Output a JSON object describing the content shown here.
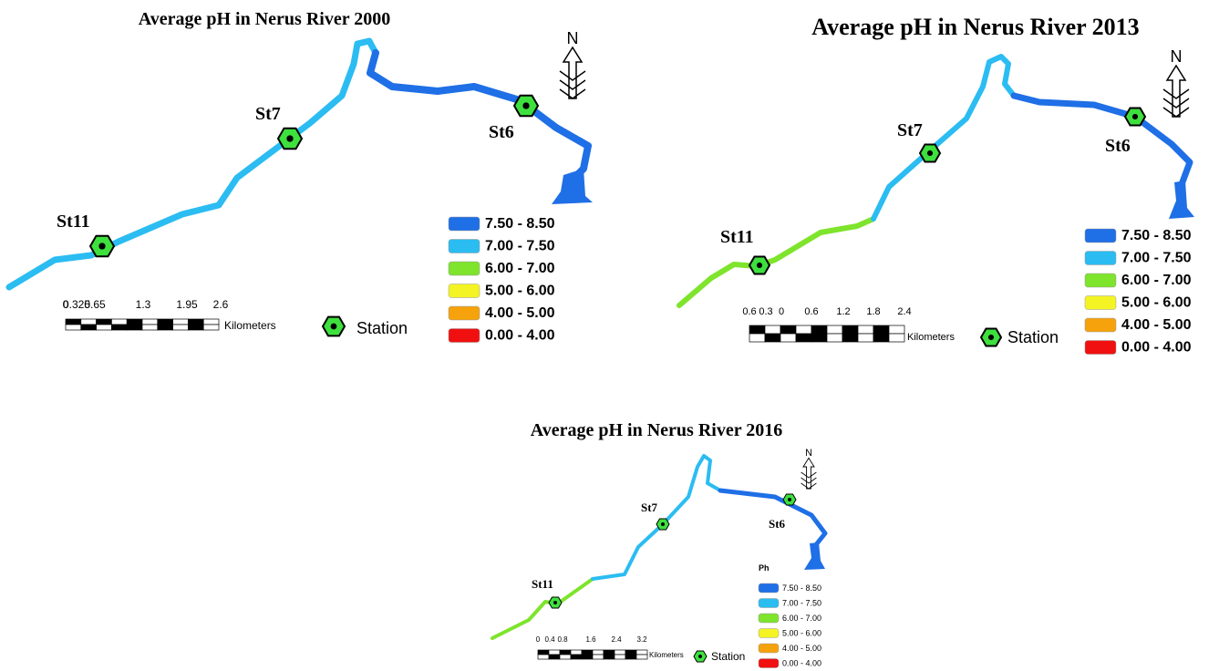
{
  "maps": [
    {
      "title": "Average pH in Nerus River 2000",
      "stations": [
        "St11",
        "St7",
        "St6"
      ],
      "legend": {
        "items": [
          {
            "label": "7.50 - 8.50",
            "color": "#1f6fe6"
          },
          {
            "label": "7.00 - 7.50",
            "color": "#2bbcf2"
          },
          {
            "label": "6.00 - 7.00",
            "color": "#7ee42c"
          },
          {
            "label": "5.00 - 6.00",
            "color": "#f4f425"
          },
          {
            "label": "4.00 - 5.00",
            "color": "#f5a20c"
          },
          {
            "label": "0.00 - 4.00",
            "color": "#f01010"
          }
        ]
      },
      "scale": {
        "labels": [
          "0",
          "0.325",
          "0.65",
          "1.3",
          "1.95",
          "2.6"
        ],
        "unit": "Kilometers"
      },
      "station_legend": "Station",
      "north": "N"
    },
    {
      "title": "Average pH in Nerus River 2013",
      "stations": [
        "St11",
        "St7",
        "St6"
      ],
      "legend": {
        "items": [
          {
            "label": "7.50 - 8.50",
            "color": "#1f6fe6"
          },
          {
            "label": "7.00 - 7.50",
            "color": "#2bbcf2"
          },
          {
            "label": "6.00 - 7.00",
            "color": "#7ee42c"
          },
          {
            "label": "5.00 - 6.00",
            "color": "#f4f425"
          },
          {
            "label": "4.00 - 5.00",
            "color": "#f5a20c"
          },
          {
            "label": "0.00 - 4.00",
            "color": "#f01010"
          }
        ]
      },
      "scale": {
        "labels": [
          "0.6",
          "0.3",
          "0",
          "0.6",
          "1.2",
          "1.8",
          "2.4"
        ],
        "unit": "Kilometers"
      },
      "station_legend": "Station",
      "north": "N"
    },
    {
      "title": "Average pH in Nerus River 2016",
      "stations": [
        "St11",
        "St7",
        "St6"
      ],
      "legend": {
        "title": "Ph",
        "items": [
          {
            "label": "7.50 - 8.50",
            "color": "#1f6fe6"
          },
          {
            "label": "7.00 - 7.50",
            "color": "#2bbcf2"
          },
          {
            "label": "6.00 - 7.00",
            "color": "#7ee42c"
          },
          {
            "label": "5.00 - 6.00",
            "color": "#f4f425"
          },
          {
            "label": "4.00 - 5.00",
            "color": "#f5a20c"
          },
          {
            "label": "0.00 - 4.00",
            "color": "#f01010"
          }
        ]
      },
      "scale": {
        "labels": [
          "0",
          "0.4",
          "0.8",
          "1.6",
          "2.4",
          "3.2"
        ],
        "unit": "Kilometers"
      },
      "station_legend": "Station",
      "north": "N"
    }
  ]
}
